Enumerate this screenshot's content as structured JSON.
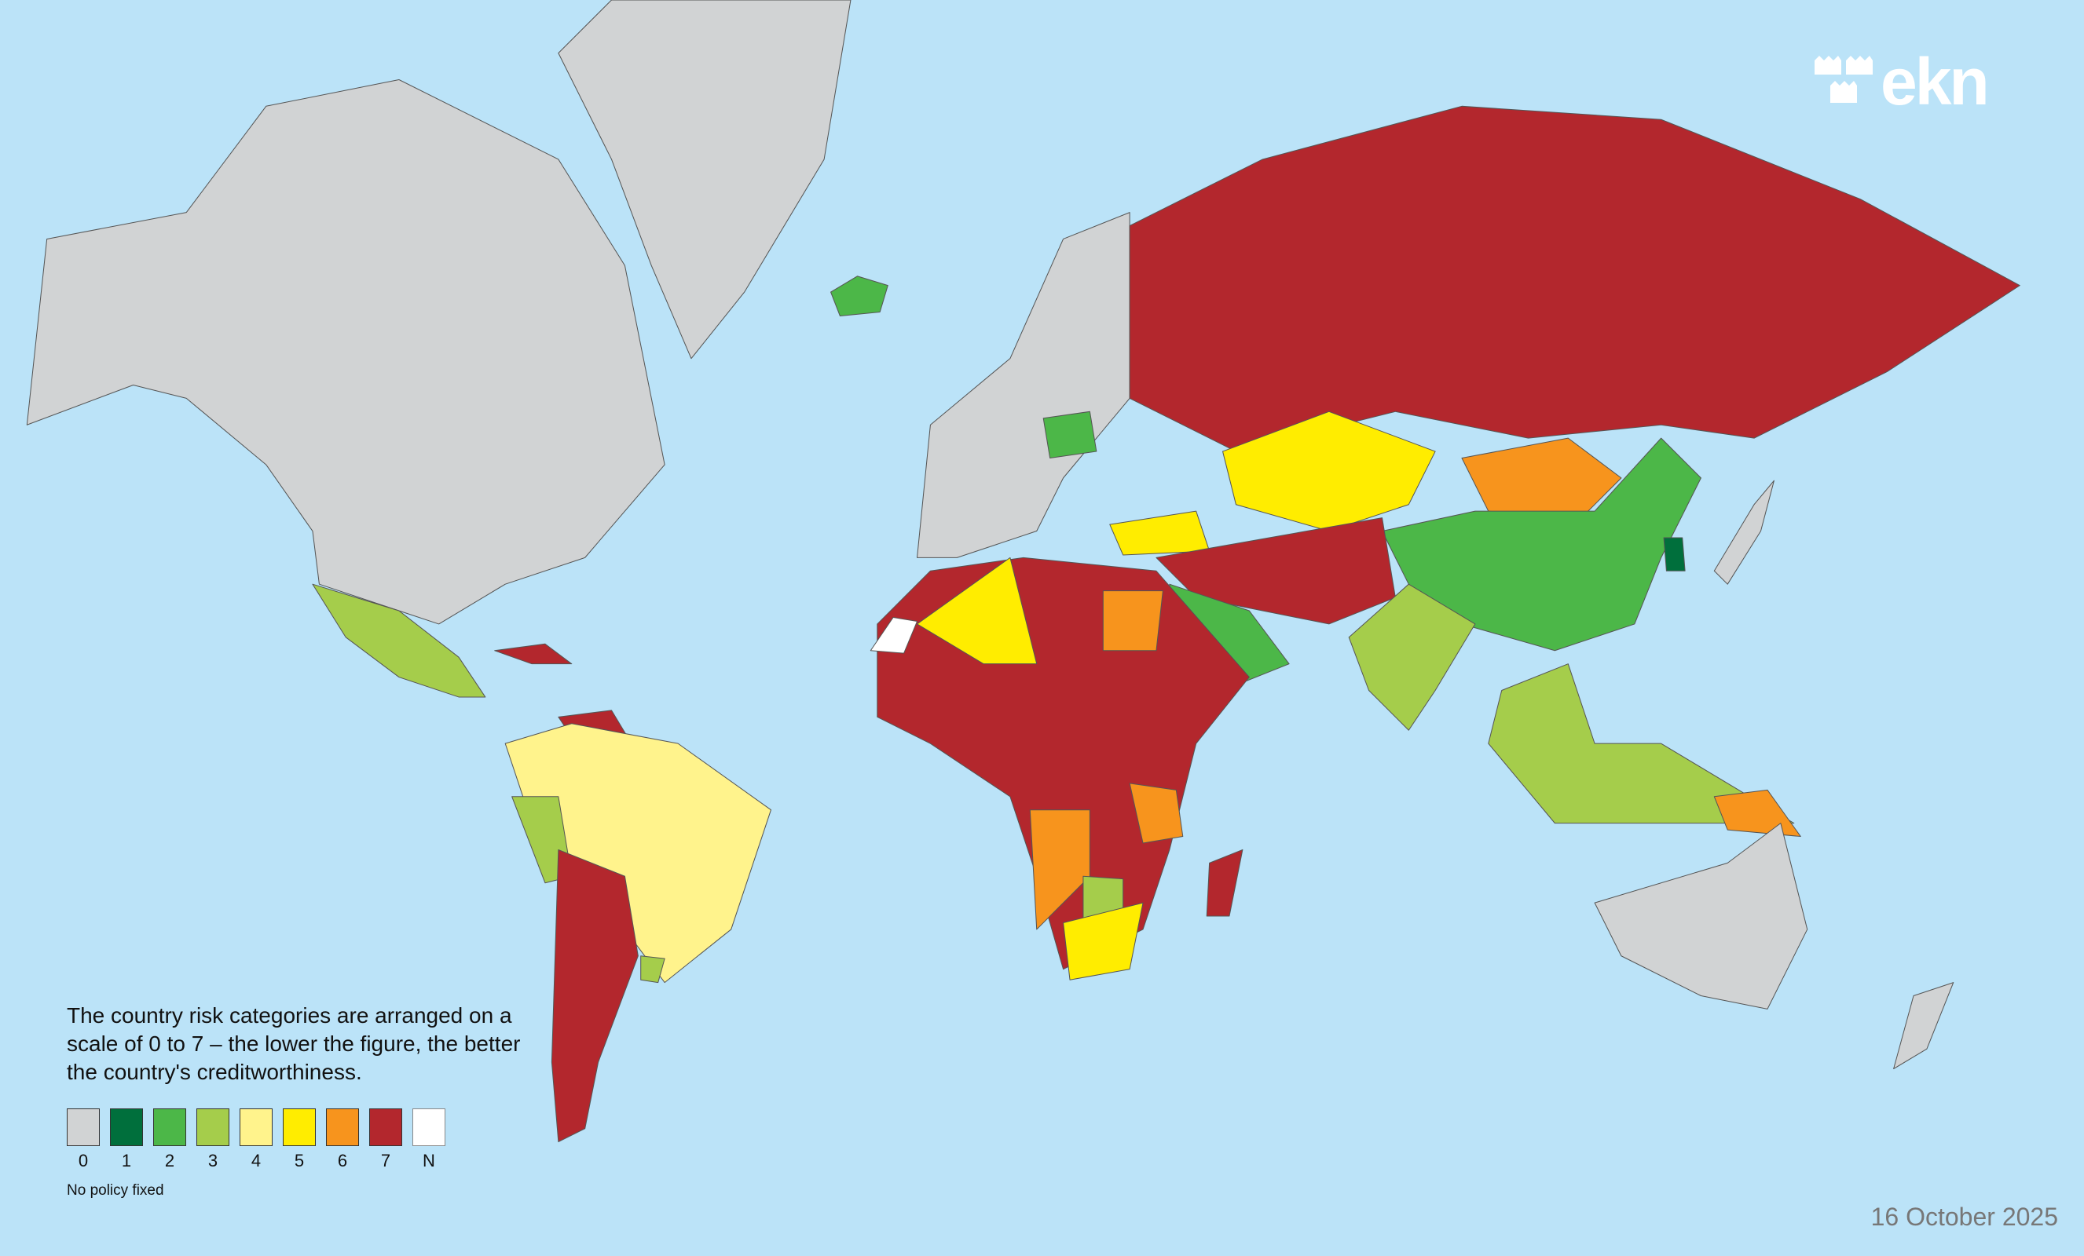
{
  "logo": {
    "text": "ekn"
  },
  "legend": {
    "description": "The country risk categories are arranged on a scale of 0 to 7 – the lower the figure, the better the country's creditworthiness.",
    "categories": [
      {
        "label": "0",
        "color": "#d1d3d4"
      },
      {
        "label": "1",
        "color": "#006f3c"
      },
      {
        "label": "2",
        "color": "#4cb748"
      },
      {
        "label": "3",
        "color": "#a5cd4b"
      },
      {
        "label": "4",
        "color": "#fff38c"
      },
      {
        "label": "5",
        "color": "#ffed00"
      },
      {
        "label": "6",
        "color": "#f7941d"
      },
      {
        "label": "7",
        "color": "#b3272d"
      },
      {
        "label": "N",
        "color": "#ffffff"
      }
    ],
    "note": "No policy fixed"
  },
  "date": "16 October 2025",
  "colors": {
    "ocean": "#bbe3f8"
  }
}
